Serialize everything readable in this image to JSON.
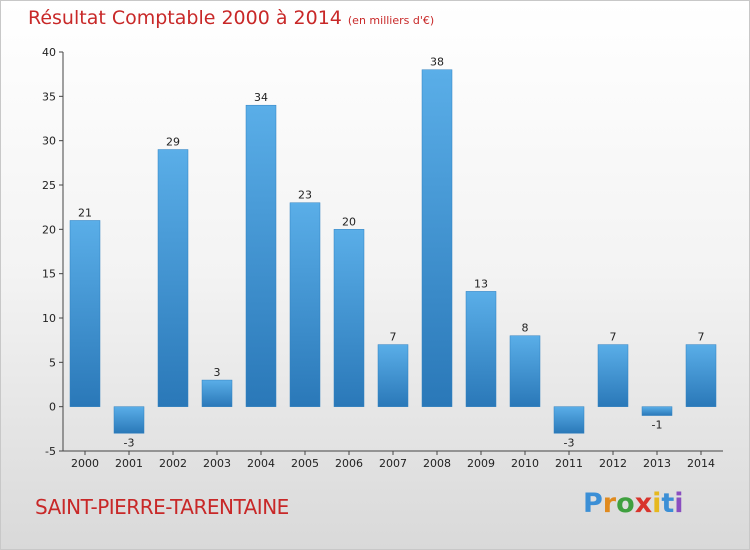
{
  "header": {
    "title": "Résultat Comptable 2000 à 2014",
    "unit": "(en milliers d'€)"
  },
  "footer": {
    "commune": "SAINT-PIERRE-TARENTAINE",
    "logo": [
      "P",
      "r",
      "o",
      "x",
      "i",
      "t",
      "i"
    ]
  },
  "colors": {
    "title": "#c82828",
    "bar_light": "#5aaee8",
    "bar_dark": "#2a78b8",
    "logo": [
      "#3b8fd6",
      "#e08a1e",
      "#3fa03f",
      "#d8342c",
      "#e6b81e",
      "#3b8fd6",
      "#8a4ec0"
    ]
  },
  "chart_data": {
    "type": "bar",
    "title": "Résultat Comptable 2000 à 2014",
    "categories": [
      "2000",
      "2001",
      "2002",
      "2003",
      "2004",
      "2005",
      "2006",
      "2007",
      "2008",
      "2009",
      "2010",
      "2011",
      "2012",
      "2013",
      "2014"
    ],
    "values": [
      21,
      -3,
      29,
      3,
      34,
      23,
      20,
      7,
      38,
      13,
      8,
      -3,
      7,
      -1,
      7
    ],
    "ylim": [
      -5,
      40
    ],
    "yticks": [
      -5,
      0,
      5,
      10,
      15,
      20,
      25,
      30,
      35,
      40
    ],
    "xlabel": "",
    "ylabel": "",
    "grid": false,
    "legend": "none"
  }
}
